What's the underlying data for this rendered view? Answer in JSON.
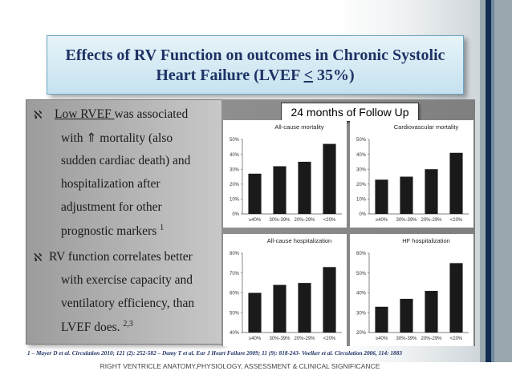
{
  "title": {
    "line1": "Effects of RV Function on outcomes in Chronic Systolic",
    "line2_prefix": "Heart Failure (LVEF ",
    "line2_operator": "<",
    "line2_suffix": " 35%)"
  },
  "bullets": {
    "symbol": "ℵ",
    "b1_lead": "Low RVEF ",
    "b1_rest": "was associated",
    "b1_l2": "with ⇑ mortality (also",
    "b1_l3": "sudden cardiac death) and",
    "b1_l4": "hospitalization after",
    "b1_l5": "adjustment for other",
    "b1_l6": "prognostic markers",
    "b1_ref": "1",
    "b2_l1": "RV function correlates better",
    "b2_l2": "with exercise capacity and",
    "b2_l3": "ventilatory efficiency, than",
    "b2_l4": "LVEF does.",
    "b2_ref": "2,3"
  },
  "followup_label": "24 months of  Follow Up",
  "reference": "1 – Mayer D et al. Circulation 2010; 121 (2): 252-582 – Damy T et al. Eur J Heart Failure 2009; 11 (9): 818-243- Voelker et al. Circulation 2006, 114: 1883",
  "footer": "RIGHT VENTRICLE  ANATOMY,PHYSIOLOGY, ASSESSMENT & CLINICAL SIGNIFICANCE",
  "colors": {
    "bar": "#1a1a1a",
    "title_text": "#1e3264"
  },
  "chart_data": [
    {
      "type": "bar",
      "title": "All-cause mortality",
      "categories": [
        "≥40%",
        "30%-39%",
        "20%-29%",
        "<20%"
      ],
      "values": [
        27,
        32,
        35,
        47
      ],
      "yticks": [
        "50%",
        "40%",
        "30%",
        "20%",
        "10%",
        "0%"
      ],
      "ylim": [
        0,
        50
      ]
    },
    {
      "type": "bar",
      "title": "Cardiovascular mortality",
      "categories": [
        "≥40%",
        "30%-39%",
        "20%-29%",
        "<20%"
      ],
      "values": [
        23,
        25,
        30,
        41
      ],
      "yticks": [
        "50%",
        "40%",
        "30%",
        "20%",
        "10%",
        "0%"
      ],
      "ylim": [
        0,
        50
      ]
    },
    {
      "type": "bar",
      "title": "All-cause hospitalization",
      "categories": [
        "≥40%",
        "30%-39%",
        "20%-29%",
        "<20%"
      ],
      "values": [
        60,
        64,
        65,
        73
      ],
      "yticks": [
        "80%",
        "70%",
        "60%",
        "50%",
        "40%"
      ],
      "ylim": [
        40,
        80
      ]
    },
    {
      "type": "bar",
      "title": "HF hospitalization",
      "categories": [
        "≥40%",
        "30%-39%",
        "20%-29%",
        "<20%"
      ],
      "values": [
        33,
        37,
        41,
        55
      ],
      "yticks": [
        "60%",
        "50%",
        "40%",
        "30%",
        "20%"
      ],
      "ylim": [
        20,
        60
      ]
    }
  ]
}
